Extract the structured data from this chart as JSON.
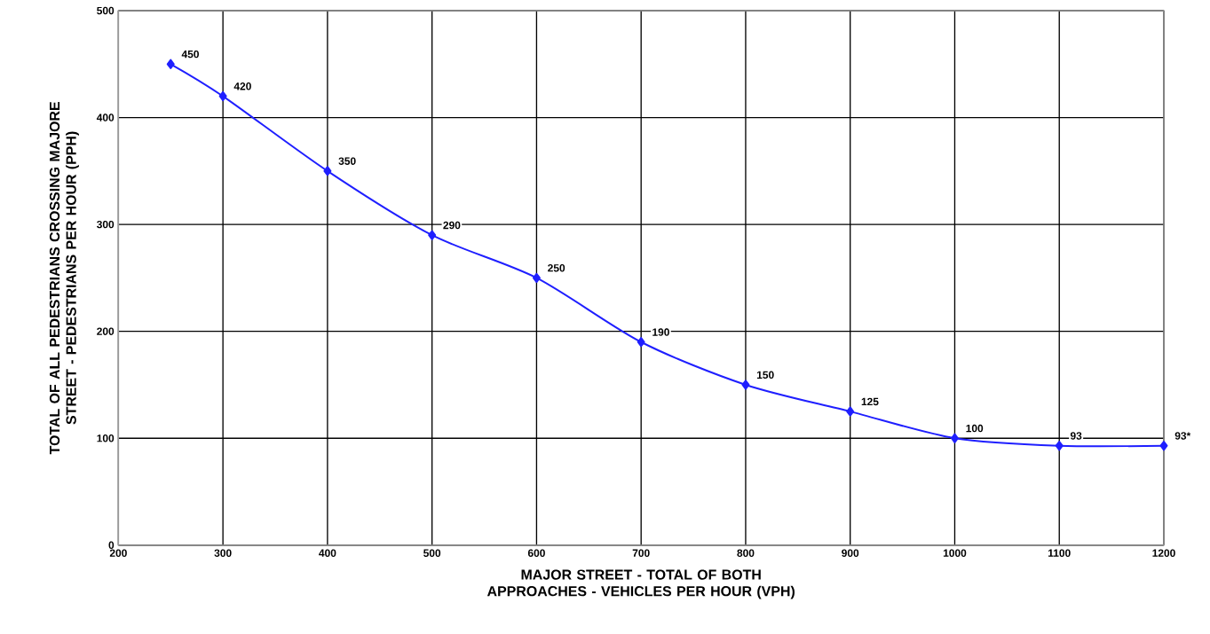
{
  "chart_data": {
    "type": "line",
    "xlabel": "MAJOR STREET - TOTAL OF BOTH APPROACHES - VEHICLES PER HOUR (VPH)",
    "ylabel": "TOTAL OF ALL PEDESTRIANS CROSSING MAJORE STREET - PEDESTRIANS PER HOUR (PPH)",
    "x": [
      250,
      300,
      400,
      500,
      600,
      700,
      800,
      900,
      1000,
      1100,
      1200
    ],
    "values": [
      450,
      420,
      350,
      290,
      250,
      190,
      150,
      125,
      100,
      93,
      93
    ],
    "value_labels": [
      "450",
      "420",
      "350",
      "290",
      "250",
      "190",
      "150",
      "125",
      "100",
      "93",
      "93*"
    ],
    "color": "#1f1fff",
    "xlim": [
      200,
      1200
    ],
    "ylim": [
      0,
      500
    ],
    "xticks": [
      200,
      300,
      400,
      500,
      600,
      700,
      800,
      900,
      1000,
      1100,
      1200
    ],
    "yticks": [
      0,
      100,
      200,
      300,
      400,
      500
    ],
    "grid": true,
    "marker": "diamond",
    "line_style": "solid"
  }
}
